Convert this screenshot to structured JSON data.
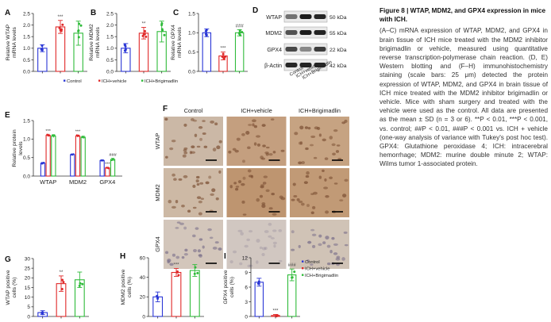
{
  "panel_letters": [
    "A",
    "B",
    "C",
    "D",
    "E",
    "F",
    "G",
    "H",
    "I"
  ],
  "significance": {
    "pp": "**",
    "ppp": "***",
    "hhh": "###"
  },
  "legend_labels": [
    "Control",
    "ICH+vehicle",
    "ICH+Brigimadlin"
  ],
  "colors": {
    "control": "#2a36d6",
    "vehicle": "#e02828",
    "brigimadlin": "#2fbb3a"
  },
  "blot": {
    "row_labels": [
      "WTAP",
      "MDM2",
      "GPX4",
      "β-Actin"
    ],
    "kda_labels": [
      "50 kDa",
      "55 kDa",
      "22 kDa",
      "42 kDa"
    ],
    "lane_labels": [
      "Control",
      "ICH+vehicle",
      "ICH+Brigimadlin"
    ]
  },
  "ihc": {
    "column_labels": [
      "Control",
      "ICH+vehicle",
      "ICH+Brigimadlin"
    ],
    "row_labels": [
      "WTAP",
      "MDM2",
      "GPX4"
    ]
  },
  "caption": {
    "title": "Figure 8 | WTAP, MDM2, and GPX4 expression in mice with ICH.",
    "body": "(A–C) mRNA expression of WTAP, MDM2, and GPX4 in brain tissue of ICH mice treated with the MDM2 inhibitor brigimadlin or vehicle, measured using quantitative reverse transcription-polymerase chain reaction. (D, E) Western blotting and (F–H) immunohistochemistry staining (scale bars: 25 μm) detected the protein expression of WTAP, MDM2, and GPX4 in brain tissue of ICH mice treated with the MDM2 inhibitor brigimadlin or vehicle. Mice with sham surgery and treated with the vehicle were used as the control. All data are presented as the mean ± SD (n = 3 or 6). **P < 0.01, ***P < 0.001, vs. control; ##P < 0.01, ###P < 0.001 vs. ICH + vehicle (one-way analysis of variance with Tukey's post hoc test). GPX4: Glutathione peroxidase 4; ICH: intracerebral hemorrhage; MDM2: murine double minute 2; WTAP: Wilms tumor 1-associated protein."
  },
  "chart_data": [
    {
      "id": "A",
      "type": "bar",
      "categories": [
        "Control",
        "ICH+vehicle",
        "ICH+Brigimadlin"
      ],
      "values": [
        1.0,
        1.92,
        1.65
      ],
      "errors": [
        0.15,
        0.28,
        0.52
      ],
      "ylabel": "Relative WTAP mRNA levels",
      "ylim": [
        0,
        2.5
      ],
      "yticks": [
        0.0,
        0.5,
        1.0,
        1.5,
        2.0,
        2.5
      ],
      "sig": [
        "",
        "***",
        ""
      ]
    },
    {
      "id": "B",
      "type": "bar",
      "categories": [
        "Control",
        "ICH+vehicle",
        "ICH+Brigimadlin"
      ],
      "values": [
        1.0,
        1.65,
        1.72
      ],
      "errors": [
        0.2,
        0.25,
        0.45
      ],
      "ylabel": "Relative MDM2 mRNA levels",
      "ylim": [
        0,
        2.5
      ],
      "yticks": [
        0.0,
        0.5,
        1.0,
        1.5,
        2.0,
        2.5
      ],
      "sig": [
        "",
        "**",
        ""
      ]
    },
    {
      "id": "C",
      "type": "bar",
      "categories": [
        "Control",
        "ICH+vehicle",
        "ICH+Brigimadlin"
      ],
      "values": [
        1.0,
        0.4,
        1.0
      ],
      "errors": [
        0.1,
        0.1,
        0.08
      ],
      "ylabel": "Relative GPX4 mRNA levels",
      "ylim": [
        0,
        1.5
      ],
      "yticks": [
        0.0,
        0.5,
        1.0,
        1.5
      ],
      "sig": [
        "",
        "***",
        "###"
      ]
    },
    {
      "id": "E",
      "type": "bar",
      "categories": [
        "WTAP",
        "MDM2",
        "GPX4"
      ],
      "series": [
        {
          "name": "Control",
          "values": [
            0.35,
            0.58,
            0.42
          ],
          "errors": [
            0.02,
            0.02,
            0.02
          ]
        },
        {
          "name": "ICH+vehicle",
          "values": [
            1.1,
            1.08,
            0.22
          ],
          "errors": [
            0.03,
            0.03,
            0.02
          ]
        },
        {
          "name": "ICH+Brigimadlin",
          "values": [
            1.08,
            1.05,
            0.45
          ],
          "errors": [
            0.04,
            0.03,
            0.03
          ]
        }
      ],
      "ylabel": "Relative protein levels",
      "ylim": [
        0,
        1.5
      ],
      "yticks": [
        0.0,
        0.5,
        1.0,
        1.5
      ],
      "sig": [
        [
          "",
          "***",
          ""
        ],
        [
          "",
          "***",
          ""
        ],
        [
          "",
          "***",
          "###"
        ]
      ]
    },
    {
      "id": "G",
      "type": "bar",
      "categories": [
        "Control",
        "ICH+vehicle",
        "ICH+Brigimadlin"
      ],
      "values": [
        2,
        17,
        19
      ],
      "errors": [
        1,
        4,
        4
      ],
      "ylabel": "WTAP positive cells (%)",
      "ylim": [
        0,
        30
      ],
      "yticks": [
        0,
        5,
        10,
        15,
        20,
        25,
        30
      ],
      "sig": [
        "",
        "**",
        ""
      ]
    },
    {
      "id": "H",
      "type": "bar",
      "categories": [
        "Control",
        "ICH+vehicle",
        "ICH+Brigimadlin"
      ],
      "values": [
        20,
        45,
        47
      ],
      "errors": [
        5,
        4,
        6
      ],
      "ylabel": "MDM2 positive cells (%)",
      "ylim": [
        0,
        60
      ],
      "yticks": [
        0,
        20,
        40,
        60
      ],
      "sig": [
        "",
        "***",
        ""
      ]
    },
    {
      "id": "I",
      "type": "bar",
      "categories": [
        "Control",
        "ICH+vehicle",
        "ICH+Brigimadlin"
      ],
      "values": [
        7,
        0.2,
        8.5
      ],
      "errors": [
        0.8,
        0.2,
        1.2
      ],
      "ylabel": "GPX4 positive cells (%)",
      "ylim": [
        0,
        12
      ],
      "yticks": [
        0,
        3,
        6,
        9,
        12
      ],
      "sig": [
        "",
        "***",
        "###"
      ]
    }
  ]
}
